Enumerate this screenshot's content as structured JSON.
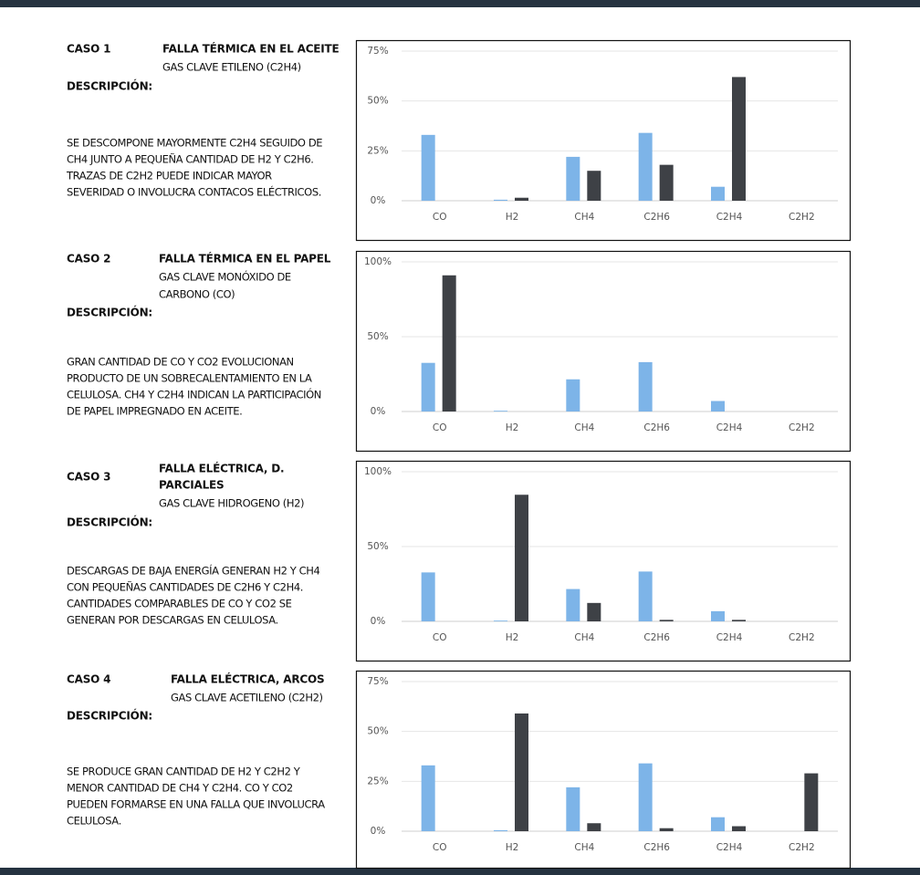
{
  "cases": [
    {
      "label": "CASO 1",
      "title": [
        "FALLA TÉRMICA EN EL ACEITE"
      ],
      "gas": [
        "GAS CLAVE ETILENO (C2H4)"
      ],
      "heading": "DESCRIPCIÓN:",
      "description": [
        "SE DESCOMPONE MAYORMENTE C2H4 SEGUIDO DE",
        "CH4 JUNTO A PEQUEÑA CANTIDAD DE H2 Y C2H6.",
        "TRAZAS DE C2H2 PUEDE INDICAR MAYOR",
        "SEVERIDAD O INVOLUCRA CONTACOS ELÉCTRICOS."
      ]
    },
    {
      "label": "CASO 2",
      "title": [
        "FALLA TÉRMICA EN EL PAPEL"
      ],
      "gas": [
        "GAS CLAVE MONÓXIDO DE",
        "CARBONO (CO)"
      ],
      "heading": "DESCRIPCIÓN:",
      "description": [
        "GRAN CANTIDAD DE CO Y CO2 EVOLUCIONAN",
        "PRODUCTO DE UN SOBRECALENTAMIENTO EN LA",
        "CELULOSA. CH4 Y C2H4 INDICAN LA PARTICIPACIÓN",
        "DE PAPEL IMPREGNADO EN ACEITE."
      ]
    },
    {
      "label": "CASO 3",
      "title": [
        "FALLA ELÉCTRICA, D.",
        "PARCIALES"
      ],
      "gas": [
        "GAS CLAVE HIDROGENO (H2)"
      ],
      "heading": "DESCRIPCIÓN:",
      "description": [
        "DESCARGAS DE BAJA ENERGÍA GENERAN H2 Y CH4",
        "CON PEQUEÑAS CANTIDADES DE C2H6 Y C2H4.",
        "CANTIDADES COMPARABLES DE CO Y CO2 SE",
        "GENERAN POR DESCARGAS EN CELULOSA."
      ]
    },
    {
      "label": "CASO 4",
      "title": [
        "FALLA ELÉCTRICA, ARCOS"
      ],
      "gas": [
        "GAS CLAVE ACETILENO (C2H2)"
      ],
      "heading": "DESCRIPCIÓN:",
      "description": [
        "SE PRODUCE GRAN CANTIDAD DE H2 Y C2H2 Y",
        "MENOR CANTIDAD DE CH4 Y C2H4. CO Y CO2",
        "PUEDEN FORMARSE EN UNA FALLA QUE INVOLUCRA",
        "CELULOSA."
      ]
    }
  ],
  "chart_data": [
    {
      "type": "bar",
      "categories": [
        "CO",
        "H2",
        "CH4",
        "C2H6",
        "C2H4",
        "C2H2"
      ],
      "series": [
        {
          "color": "#7db4e8",
          "values": [
            33,
            0.5,
            22,
            34,
            7,
            0
          ]
        },
        {
          "color": "#3e4146",
          "values": [
            0,
            1.5,
            15,
            18,
            62,
            0
          ]
        }
      ],
      "ylim": [
        0,
        75
      ],
      "yticks": [
        {
          "value": 0,
          "label": "0%"
        },
        {
          "value": 25,
          "label": "25%"
        },
        {
          "value": 50,
          "label": "50%"
        },
        {
          "value": 75,
          "label": "75%"
        }
      ],
      "grid": true
    },
    {
      "type": "bar",
      "categories": [
        "CO",
        "H2",
        "CH4",
        "C2H6",
        "C2H4",
        "C2H2"
      ],
      "series": [
        {
          "color": "#7db4e8",
          "values": [
            32.5,
            0.5,
            21.5,
            33,
            7,
            0
          ]
        },
        {
          "color": "#3e4146",
          "values": [
            91,
            0,
            0,
            0,
            0,
            0
          ]
        }
      ],
      "ylim": [
        0,
        100
      ],
      "yticks": [
        {
          "value": 0,
          "label": "0%"
        },
        {
          "value": 50,
          "label": "50%"
        },
        {
          "value": 100,
          "label": "100%"
        }
      ],
      "grid": true
    },
    {
      "type": "bar",
      "categories": [
        "CO",
        "H2",
        "CH4",
        "C2H6",
        "C2H4",
        "C2H2"
      ],
      "series": [
        {
          "color": "#7db4e8",
          "values": [
            32.7,
            0.5,
            21.6,
            33.3,
            6.8,
            0
          ]
        },
        {
          "color": "#3e4146",
          "values": [
            0,
            84.6,
            12.3,
            1,
            1,
            0
          ]
        }
      ],
      "ylim": [
        0,
        100
      ],
      "yticks": [
        {
          "value": 0,
          "label": "0%"
        },
        {
          "value": 50,
          "label": "50%"
        },
        {
          "value": 100,
          "label": "100%"
        }
      ],
      "grid": true
    },
    {
      "type": "bar",
      "categories": [
        "CO",
        "H2",
        "CH4",
        "C2H6",
        "C2H4",
        "C2H2"
      ],
      "series": [
        {
          "color": "#7db4e8",
          "values": [
            33,
            0.5,
            22,
            34,
            7,
            0
          ]
        },
        {
          "color": "#3e4146",
          "values": [
            0,
            59,
            4,
            1.5,
            2.5,
            29
          ]
        }
      ],
      "ylim": [
        0,
        75
      ],
      "yticks": [
        {
          "value": 0,
          "label": "0%"
        },
        {
          "value": 25,
          "label": "25%"
        },
        {
          "value": 50,
          "label": "50%"
        },
        {
          "value": 75,
          "label": "75%"
        }
      ],
      "grid": true
    }
  ]
}
